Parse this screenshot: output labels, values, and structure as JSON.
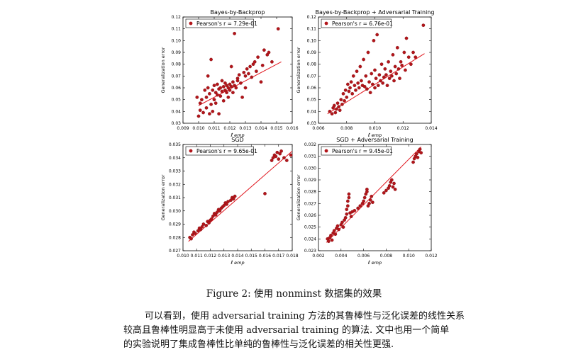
{
  "figure": {
    "caption": "Figure 2: 使用 nonminst 数据集的效果",
    "panels": [
      {
        "title": "Bayes-by-Backprop",
        "legend": "Pearson's r = 7.29e-01",
        "ylabel": "Generalization error",
        "xlabel": "ℓ̂ emp",
        "xticks": [
          "0.009",
          "0.010",
          "0.011",
          "0.012",
          "0.013",
          "0.014",
          "0.015",
          "0.016"
        ],
        "yticks": [
          "0.03",
          "0.04",
          "0.05",
          "0.06",
          "0.07",
          "0.08",
          "0.09",
          "0.10",
          "0.11",
          "0.12"
        ]
      },
      {
        "title": "Bayes-by-Backprop + Adversarial Training",
        "legend": "Pearson's r = 6.76e-01",
        "ylabel": "Generalization error",
        "xlabel": "ℓ̂ emp",
        "xticks": [
          "0.006",
          "0.008",
          "0.010",
          "0.012",
          "0.014"
        ],
        "yticks": [
          "0.03",
          "0.04",
          "0.05",
          "0.06",
          "0.07",
          "0.08",
          "0.09",
          "0.10",
          "0.11",
          "0.12"
        ]
      },
      {
        "title": "SGD",
        "legend": "Pearson's r = 9.65e-01",
        "ylabel": "Generalization error",
        "xlabel": "ℓ̂ emp",
        "xticks": [
          "0.010",
          "0.011",
          "0.012",
          "0.013",
          "0.014",
          "0.015",
          "0.016",
          "0.017",
          "0.018"
        ],
        "yticks": [
          "0.027",
          "0.028",
          "0.029",
          "0.030",
          "0.031",
          "0.032",
          "0.033",
          "0.034",
          "0.035"
        ]
      },
      {
        "title": "SGD + Adversarial Training",
        "legend": "Pearson's r = 9.45e-01",
        "ylabel": "Generalization error",
        "xlabel": "ℓ̂ emp",
        "xticks": [
          "0.002",
          "0.004",
          "0.006",
          "0.008",
          "0.010",
          "0.012"
        ],
        "yticks": [
          "0.023",
          "0.024",
          "0.025",
          "0.026",
          "0.027",
          "0.028",
          "0.029",
          "0.030",
          "0.031",
          "0.032"
        ]
      }
    ]
  },
  "chart_data": [
    {
      "type": "scatter",
      "title": "Bayes-by-Backprop",
      "xlabel": "ℓ̂ emp",
      "ylabel": "Generalization error",
      "xlim": [
        0.009,
        0.016
      ],
      "ylim": [
        0.03,
        0.12
      ],
      "legend": "Pearson's r = 7.29e-01",
      "color": "#b2151a",
      "fit": {
        "x": [
          0.01,
          0.0153
        ],
        "y": [
          0.045,
          0.082
        ]
      },
      "points": [
        [
          0.0099,
          0.052
        ],
        [
          0.01,
          0.036
        ],
        [
          0.0101,
          0.041
        ],
        [
          0.0101,
          0.047
        ],
        [
          0.0102,
          0.05
        ],
        [
          0.0103,
          0.039
        ],
        [
          0.0104,
          0.058
        ],
        [
          0.0105,
          0.043
        ],
        [
          0.0105,
          0.052
        ],
        [
          0.0106,
          0.06
        ],
        [
          0.0106,
          0.07
        ],
        [
          0.0107,
          0.038
        ],
        [
          0.0107,
          0.055
        ],
        [
          0.0108,
          0.084
        ],
        [
          0.0108,
          0.046
        ],
        [
          0.0109,
          0.04
        ],
        [
          0.0109,
          0.058
        ],
        [
          0.011,
          0.062
        ],
        [
          0.011,
          0.05
        ],
        [
          0.0111,
          0.047
        ],
        [
          0.0111,
          0.056
        ],
        [
          0.0112,
          0.054
        ],
        [
          0.0112,
          0.063
        ],
        [
          0.0113,
          0.038
        ],
        [
          0.0113,
          0.059
        ],
        [
          0.0114,
          0.053
        ],
        [
          0.0114,
          0.06
        ],
        [
          0.0115,
          0.066
        ],
        [
          0.0115,
          0.057
        ],
        [
          0.0116,
          0.061
        ],
        [
          0.0116,
          0.049
        ],
        [
          0.0117,
          0.058
        ],
        [
          0.0117,
          0.064
        ],
        [
          0.0118,
          0.056
        ],
        [
          0.0118,
          0.062
        ],
        [
          0.0119,
          0.06
        ],
        [
          0.0119,
          0.052
        ],
        [
          0.012,
          0.063
        ],
        [
          0.012,
          0.058
        ],
        [
          0.0121,
          0.078
        ],
        [
          0.0121,
          0.061
        ],
        [
          0.0122,
          0.065
        ],
        [
          0.0122,
          0.056
        ],
        [
          0.0123,
          0.106
        ],
        [
          0.0123,
          0.062
        ],
        [
          0.0124,
          0.06
        ],
        [
          0.0125,
          0.068
        ],
        [
          0.0125,
          0.066
        ],
        [
          0.0126,
          0.071
        ],
        [
          0.0127,
          0.064
        ],
        [
          0.0128,
          0.052
        ],
        [
          0.0129,
          0.073
        ],
        [
          0.013,
          0.06
        ],
        [
          0.013,
          0.07
        ],
        [
          0.0131,
          0.076
        ],
        [
          0.0132,
          0.072
        ],
        [
          0.0133,
          0.078
        ],
        [
          0.0134,
          0.069
        ],
        [
          0.0135,
          0.08
        ],
        [
          0.0136,
          0.082
        ],
        [
          0.0137,
          0.074
        ],
        [
          0.0138,
          0.086
        ],
        [
          0.014,
          0.065
        ],
        [
          0.0141,
          0.079
        ],
        [
          0.0142,
          0.092
        ],
        [
          0.0144,
          0.088
        ],
        [
          0.0145,
          0.09
        ],
        [
          0.0147,
          0.082
        ],
        [
          0.0151,
          0.11
        ]
      ]
    },
    {
      "type": "scatter",
      "title": "Bayes-by-Backprop + Adversarial Training",
      "xlabel": "ℓ̂ emp",
      "ylabel": "Generalization error",
      "xlim": [
        0.005,
        0.015
      ],
      "ylim": [
        0.03,
        0.12
      ],
      "legend": "Pearson's r = 6.76e-01",
      "color": "#b2151a",
      "fit": {
        "x": [
          0.0058,
          0.0144
        ],
        "y": [
          0.038,
          0.089
        ]
      },
      "points": [
        [
          0.006,
          0.04
        ],
        [
          0.0062,
          0.038
        ],
        [
          0.0063,
          0.043
        ],
        [
          0.0064,
          0.045
        ],
        [
          0.0065,
          0.039
        ],
        [
          0.0066,
          0.042
        ],
        [
          0.0067,
          0.047
        ],
        [
          0.0068,
          0.044
        ],
        [
          0.0069,
          0.041
        ],
        [
          0.007,
          0.05
        ],
        [
          0.0071,
          0.046
        ],
        [
          0.0072,
          0.055
        ],
        [
          0.0073,
          0.049
        ],
        [
          0.0074,
          0.058
        ],
        [
          0.0075,
          0.052
        ],
        [
          0.0076,
          0.063
        ],
        [
          0.0077,
          0.057
        ],
        [
          0.0078,
          0.06
        ],
        [
          0.0079,
          0.065
        ],
        [
          0.008,
          0.055
        ],
        [
          0.0081,
          0.07
        ],
        [
          0.0082,
          0.062
        ],
        [
          0.0083,
          0.058
        ],
        [
          0.0084,
          0.074
        ],
        [
          0.0085,
          0.064
        ],
        [
          0.0086,
          0.06
        ],
        [
          0.0087,
          0.078
        ],
        [
          0.0088,
          0.066
        ],
        [
          0.0089,
          0.062
        ],
        [
          0.009,
          0.084
        ],
        [
          0.0091,
          0.061
        ],
        [
          0.0092,
          0.07
        ],
        [
          0.0093,
          0.059
        ],
        [
          0.0094,
          0.09
        ],
        [
          0.0095,
          0.065
        ],
        [
          0.0096,
          0.056
        ],
        [
          0.0097,
          0.072
        ],
        [
          0.0098,
          0.063
        ],
        [
          0.0099,
          0.1
        ],
        [
          0.01,
          0.06
        ],
        [
          0.01,
          0.075
        ],
        [
          0.0101,
          0.068
        ],
        [
          0.0102,
          0.105
        ],
        [
          0.0103,
          0.062
        ],
        [
          0.0104,
          0.071
        ],
        [
          0.0105,
          0.066
        ],
        [
          0.0106,
          0.08
        ],
        [
          0.0107,
          0.064
        ],
        [
          0.0108,
          0.069
        ],
        [
          0.0109,
          0.076
        ],
        [
          0.011,
          0.071
        ],
        [
          0.0111,
          0.062
        ],
        [
          0.0112,
          0.082
        ],
        [
          0.0113,
          0.068
        ],
        [
          0.0114,
          0.074
        ],
        [
          0.0115,
          0.07
        ],
        [
          0.0116,
          0.088
        ],
        [
          0.0117,
          0.066
        ],
        [
          0.0118,
          0.078
        ],
        [
          0.0119,
          0.072
        ],
        [
          0.012,
          0.094
        ],
        [
          0.0121,
          0.076
        ],
        [
          0.0122,
          0.068
        ],
        [
          0.0123,
          0.082
        ],
        [
          0.0124,
          0.079
        ],
        [
          0.0126,
          0.09
        ],
        [
          0.0127,
          0.075
        ],
        [
          0.0128,
          0.102
        ],
        [
          0.013,
          0.086
        ],
        [
          0.0132,
          0.08
        ],
        [
          0.0134,
          0.09
        ],
        [
          0.0136,
          0.086
        ],
        [
          0.0143,
          0.113
        ]
      ]
    },
    {
      "type": "scatter",
      "title": "SGD",
      "xlabel": "ℓ̂ emp",
      "ylabel": "Generalization error",
      "xlim": [
        0.01,
        0.018
      ],
      "ylim": [
        0.027,
        0.035
      ],
      "legend": "Pearson's r = 9.65e-01",
      "color": "#b2151a",
      "fit": {
        "x": [
          0.0104,
          0.018
        ],
        "y": [
          0.0277,
          0.0345
        ]
      },
      "points": [
        [
          0.0105,
          0.028
        ],
        [
          0.0106,
          0.0279
        ],
        [
          0.0107,
          0.0282
        ],
        [
          0.0108,
          0.0284
        ],
        [
          0.0109,
          0.0283
        ],
        [
          0.0111,
          0.0285
        ],
        [
          0.0112,
          0.0287
        ],
        [
          0.0113,
          0.0286
        ],
        [
          0.0114,
          0.0288
        ],
        [
          0.0115,
          0.029
        ],
        [
          0.0117,
          0.0289
        ],
        [
          0.0118,
          0.0292
        ],
        [
          0.0119,
          0.0291
        ],
        [
          0.012,
          0.0293
        ],
        [
          0.0121,
          0.0294
        ],
        [
          0.0122,
          0.0296
        ],
        [
          0.0123,
          0.0298
        ],
        [
          0.0124,
          0.0297
        ],
        [
          0.0125,
          0.0299
        ],
        [
          0.0126,
          0.0301
        ],
        [
          0.0127,
          0.03
        ],
        [
          0.0128,
          0.0302
        ],
        [
          0.0129,
          0.0303
        ],
        [
          0.013,
          0.0304
        ],
        [
          0.0131,
          0.0306
        ],
        [
          0.0132,
          0.0305
        ],
        [
          0.0133,
          0.0307
        ],
        [
          0.0135,
          0.0308
        ],
        [
          0.0136,
          0.031
        ],
        [
          0.0137,
          0.0309
        ],
        [
          0.0138,
          0.0311
        ],
        [
          0.016,
          0.0313
        ],
        [
          0.0165,
          0.0338
        ],
        [
          0.0166,
          0.034
        ],
        [
          0.0167,
          0.0342
        ],
        [
          0.0168,
          0.0341
        ],
        [
          0.0169,
          0.0344
        ],
        [
          0.017,
          0.0339
        ],
        [
          0.0171,
          0.0343
        ],
        [
          0.0172,
          0.0345
        ],
        [
          0.0174,
          0.034
        ],
        [
          0.0176,
          0.0338
        ],
        [
          0.0179,
          0.0342
        ]
      ]
    },
    {
      "type": "scatter",
      "title": "SGD + Adversarial Training",
      "xlabel": "ℓ̂ emp",
      "ylabel": "Generalization error",
      "xlim": [
        0.002,
        0.012
      ],
      "ylim": [
        0.023,
        0.032
      ],
      "legend": "Pearson's r = 9.45e-01",
      "color": "#b2151a",
      "fit": {
        "x": [
          0.0027,
          0.0111
        ],
        "y": [
          0.0237,
          0.0318
        ]
      },
      "points": [
        [
          0.0028,
          0.024
        ],
        [
          0.0029,
          0.0238
        ],
        [
          0.003,
          0.0241
        ],
        [
          0.0031,
          0.0243
        ],
        [
          0.0032,
          0.0239
        ],
        [
          0.0033,
          0.0245
        ],
        [
          0.0034,
          0.0247
        ],
        [
          0.0035,
          0.0244
        ],
        [
          0.0036,
          0.0249
        ],
        [
          0.0037,
          0.0251
        ],
        [
          0.0038,
          0.0248
        ],
        [
          0.004,
          0.0252
        ],
        [
          0.0041,
          0.0254
        ],
        [
          0.0042,
          0.025
        ],
        [
          0.0043,
          0.0256
        ],
        [
          0.0044,
          0.0258
        ],
        [
          0.0045,
          0.0261
        ],
        [
          0.0045,
          0.0265
        ],
        [
          0.0046,
          0.0268
        ],
        [
          0.0046,
          0.0272
        ],
        [
          0.0047,
          0.0275
        ],
        [
          0.0047,
          0.0278
        ],
        [
          0.0048,
          0.0262
        ],
        [
          0.0049,
          0.0259
        ],
        [
          0.005,
          0.0263
        ],
        [
          0.0052,
          0.0264
        ],
        [
          0.0055,
          0.0266
        ],
        [
          0.0057,
          0.0268
        ],
        [
          0.0059,
          0.027
        ],
        [
          0.006,
          0.0272
        ],
        [
          0.0061,
          0.0275
        ],
        [
          0.0062,
          0.0278
        ],
        [
          0.0063,
          0.028
        ],
        [
          0.0063,
          0.0282
        ],
        [
          0.0064,
          0.0268
        ],
        [
          0.0065,
          0.027
        ],
        [
          0.0066,
          0.0273
        ],
        [
          0.0067,
          0.0276
        ],
        [
          0.0068,
          0.0271
        ],
        [
          0.0078,
          0.0279
        ],
        [
          0.008,
          0.0281
        ],
        [
          0.0082,
          0.0283
        ],
        [
          0.0083,
          0.0285
        ],
        [
          0.0084,
          0.0288
        ],
        [
          0.0085,
          0.029
        ],
        [
          0.0086,
          0.0284
        ],
        [
          0.0087,
          0.0287
        ],
        [
          0.0088,
          0.0282
        ],
        [
          0.0104,
          0.0305
        ],
        [
          0.0105,
          0.0308
        ],
        [
          0.0106,
          0.031
        ],
        [
          0.0107,
          0.0312
        ],
        [
          0.0108,
          0.0309
        ],
        [
          0.0109,
          0.0314
        ],
        [
          0.011,
          0.0316
        ],
        [
          0.0111,
          0.0313
        ]
      ]
    }
  ],
  "paragraph": {
    "lines": [
      "可以看到，使用 adversarial training 方法的其鲁棒性与泛化误差的线性关系",
      "较高且鲁棒性明显高于未使用 adversarial training 的算法. 文中也用一个简单",
      "的实验说明了集成鲁棒性比单纯的鲁棒性与泛化误差的相关性更强."
    ]
  }
}
